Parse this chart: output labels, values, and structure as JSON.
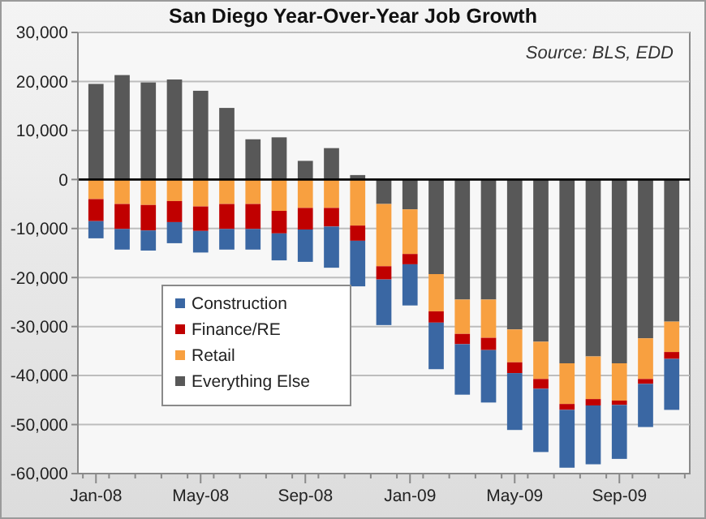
{
  "chart_data": {
    "type": "bar",
    "stacked": true,
    "title": "San Diego Year-Over-Year Job Growth",
    "annotations": [
      "Source: BLS, EDD"
    ],
    "categories": [
      "Jan-08",
      null,
      null,
      null,
      "May-08",
      null,
      null,
      null,
      "Sep-08",
      null,
      null,
      null,
      "Jan-09",
      null,
      null,
      null,
      "May-09",
      null,
      null,
      null,
      "Sep-09",
      null,
      null
    ],
    "series": [
      {
        "name": "Everything Else",
        "color": "#585858",
        "values": [
          19500,
          21300,
          19800,
          20400,
          18100,
          14600,
          8200,
          8600,
          3800,
          6400,
          900,
          -5000,
          -6100,
          -19300,
          -24500,
          -24500,
          -30600,
          -33100,
          -37500,
          -36100,
          -37500,
          -32400,
          -29000
        ]
      },
      {
        "name": "Retail",
        "color": "#f8a040",
        "values": [
          -4000,
          -5000,
          -5200,
          -4400,
          -5500,
          -5000,
          -5000,
          -6400,
          -5800,
          -5800,
          -9400,
          -12700,
          -9100,
          -7600,
          -7000,
          -7800,
          -6700,
          -7600,
          -8300,
          -8700,
          -7600,
          -8300,
          -6200
        ]
      },
      {
        "name": "Finance/RE",
        "color": "#c00000",
        "values": [
          -4500,
          -5100,
          -5200,
          -4300,
          -5000,
          -5100,
          -5100,
          -4600,
          -4400,
          -3800,
          -3100,
          -2700,
          -2100,
          -2300,
          -2100,
          -2500,
          -2200,
          -2000,
          -1200,
          -1300,
          -900,
          -1000,
          -1400
        ]
      },
      {
        "name": "Construction",
        "color": "#3a67a3",
        "values": [
          -3500,
          -4200,
          -4100,
          -4300,
          -4400,
          -4200,
          -4200,
          -5500,
          -6600,
          -8400,
          -9300,
          -9300,
          -8400,
          -9500,
          -10300,
          -10700,
          -11600,
          -12900,
          -11800,
          -12000,
          -11000,
          -8800,
          -10400
        ]
      }
    ],
    "ylim": [
      -60000,
      30000
    ],
    "yticks": [
      {
        "value": -60000,
        "label": "-60,000"
      },
      {
        "value": -50000,
        "label": "-50,000"
      },
      {
        "value": -40000,
        "label": "-40,000"
      },
      {
        "value": -30000,
        "label": "-30,000"
      },
      {
        "value": -20000,
        "label": "-20,000"
      },
      {
        "value": -10000,
        "label": "-10,000"
      },
      0,
      {
        "value": 10000,
        "label": "10,000"
      },
      {
        "value": 20000,
        "label": "20,000"
      },
      {
        "value": 30000,
        "label": "30,000"
      }
    ],
    "grid": "y",
    "legend": "bottom left"
  }
}
